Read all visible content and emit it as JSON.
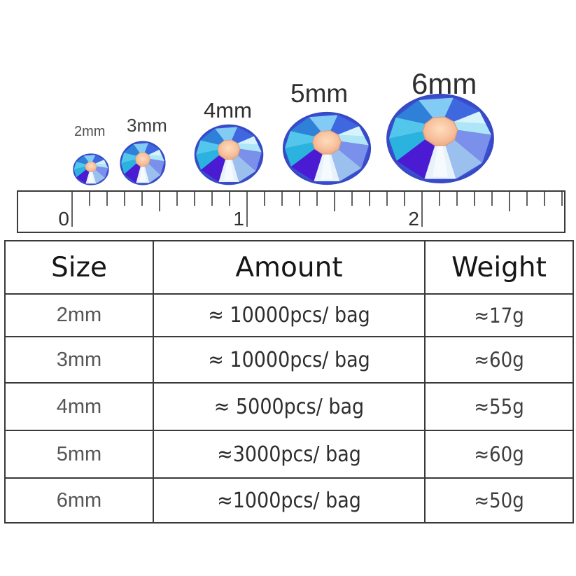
{
  "gems": {
    "items": [
      {
        "label": "2mm"
      },
      {
        "label": "3mm"
      },
      {
        "label": "4mm"
      },
      {
        "label": "5mm"
      },
      {
        "label": "6mm"
      }
    ],
    "colors": {
      "rim": "#3a4fd2",
      "facet_pale_cyan": "#aee6f8",
      "facet_royal": "#3f68e0",
      "facet_sky": "#82cbf4",
      "facet_medium_blue": "#2f80d9",
      "facet_cyan": "#52c7eb",
      "facet_teal": "#2ab3de",
      "facet_indigo": "#4a1bd2",
      "facet_keel_silver": "#e7f2fa",
      "facet_light_blue": "#9cc0ee",
      "facet_periwinkle": "#7b90ea",
      "table_center_peach": "#f7c09c"
    }
  },
  "ruler": {
    "marks": [
      "0",
      "1",
      "2"
    ]
  },
  "table": {
    "headers": [
      "Size",
      "Amount",
      "Weight"
    ],
    "rows": [
      {
        "size": "2mm",
        "amount": "≈ 10000pcs/ bag",
        "weight": "≈17g"
      },
      {
        "size": "3mm",
        "amount": "≈ 10000pcs/ bag",
        "weight": "≈60g"
      },
      {
        "size": "4mm",
        "amount": "≈ 5000pcs/ bag",
        "weight": "≈55g"
      },
      {
        "size": "5mm",
        "amount": "≈3000pcs/ bag",
        "weight": "≈60g"
      },
      {
        "size": "6mm",
        "amount": "≈1000pcs/ bag",
        "weight": "≈50g"
      }
    ]
  }
}
